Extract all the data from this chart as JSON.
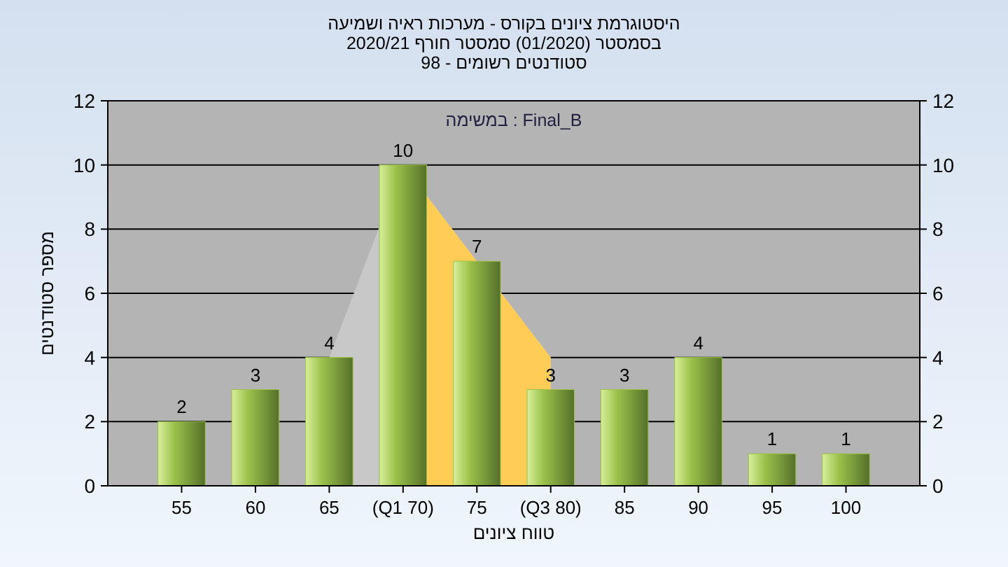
{
  "chart_data": {
    "type": "bar",
    "title": "היסטוגרמת ציונים בקורס - מערכות ראיה ושמיעה",
    "subtitle": "בסמסטר  (01/2020)  סמסטר חורף 2020/21\nסטודנטים רשומים - 98",
    "categories": [
      "55",
      "60",
      "65",
      "(Q1 70)",
      "75",
      "(Q3 80)",
      "85",
      "90",
      "95",
      "100"
    ],
    "series": [
      {
        "type": "area",
        "color": "#c8c8c8",
        "values": [
          null,
          null,
          4,
          10,
          7,
          4,
          null,
          null,
          null,
          null
        ]
      },
      {
        "type": "area",
        "color": "#ffcc55",
        "values": [
          null,
          null,
          null,
          10,
          7,
          4,
          null,
          null,
          null,
          null
        ]
      },
      {
        "color": "#9bc14a",
        "values": [
          2,
          3,
          4,
          10,
          7,
          3,
          3,
          4,
          1,
          1
        ],
        "value_labels": [
          "2",
          "3",
          "4",
          "10",
          "7",
          "3",
          "3",
          "4",
          "1",
          "1"
        ]
      }
    ],
    "xlabel": "טווח ציונים",
    "ylabel": "מספר סטודנטים",
    "annotations": [
      "במשימה : Final_B"
    ],
    "ylim": [
      0,
      12
    ],
    "yticks": [
      0,
      2,
      4,
      6,
      8,
      10,
      12
    ],
    "y2lim": [
      0,
      12
    ],
    "y2ticks": [
      0,
      2,
      4,
      6,
      8,
      10,
      12
    ],
    "grid": "y"
  }
}
